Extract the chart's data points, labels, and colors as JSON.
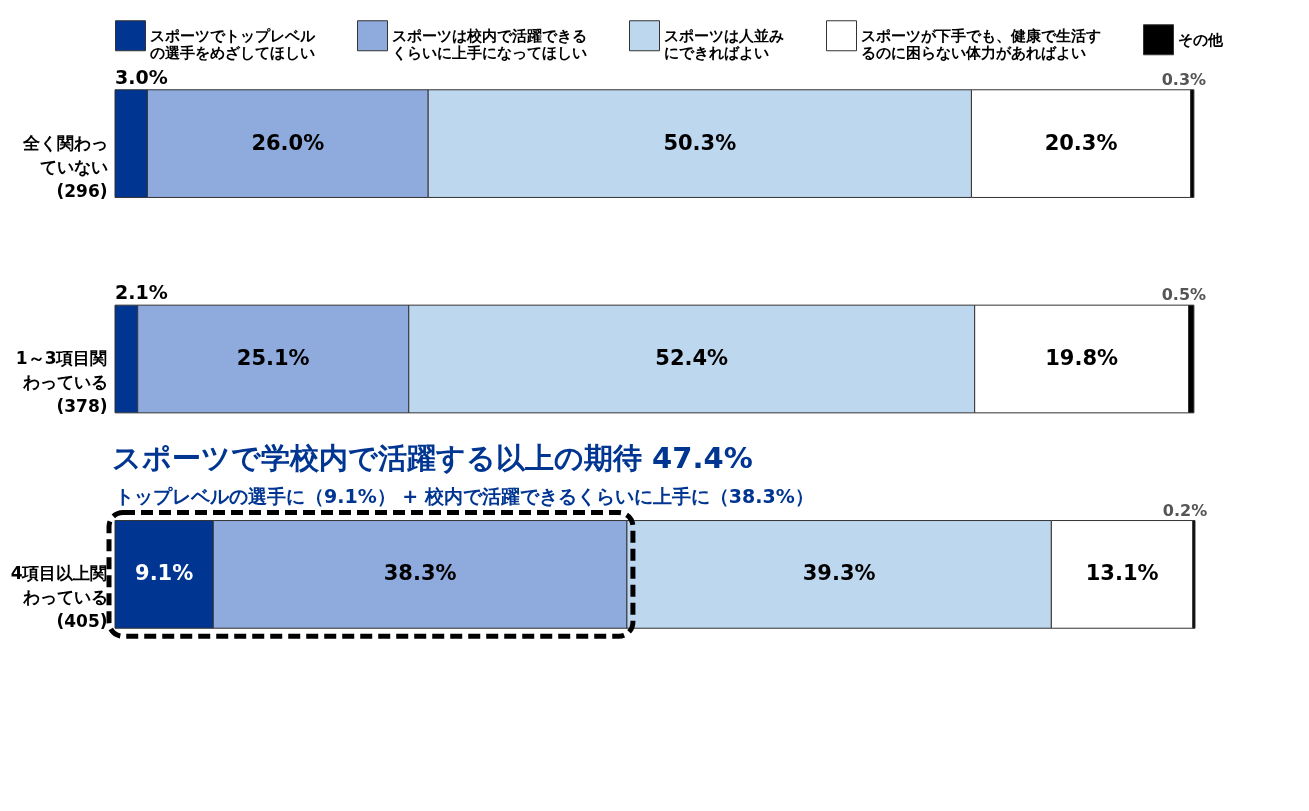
{
  "chart_data": {
    "type": "bar",
    "orientation": "horizontal",
    "stacked": true,
    "legend": "top",
    "categories": [
      "全く関わっていない(296)",
      "1～3項目関わっている(378)",
      "4項目以上関わっている(405)"
    ],
    "series": [
      {
        "name": "スポーツでトップレベルの選手をめざしてほしい",
        "color": "#003591",
        "values": [
          3.0,
          2.1,
          9.1
        ],
        "value_labels": [
          "3.0%",
          "2.1%",
          "9.1%"
        ]
      },
      {
        "name": "スポーツは校内で活躍できるくらいに上手になってほしい",
        "color": "#8faadc",
        "values": [
          26.0,
          25.1,
          38.3
        ],
        "value_labels": [
          "26.0%",
          "25.1%",
          "38.3%"
        ]
      },
      {
        "name": "スポーツは人並みにできればよい",
        "color": "#bdd7ee",
        "values": [
          50.3,
          52.4,
          39.3
        ],
        "value_labels": [
          "50.3%",
          "52.4%",
          "39.3%"
        ]
      },
      {
        "name": "スポーツが下手でも、健康で生活するのに困らない体力があればよい",
        "color": "#ffffff",
        "values": [
          20.3,
          19.8,
          13.1
        ],
        "value_labels": [
          "20.3%",
          "19.8%",
          "13.1%"
        ]
      },
      {
        "name": "その他",
        "color": "#000000",
        "values": [
          0.3,
          0.5,
          0.2
        ],
        "value_labels": [
          "0.3%",
          "0.5%",
          "0.2%"
        ]
      }
    ],
    "annotations": [
      "スポーツで学校内で活躍する以上の期待 47.4%",
      "トップレベルの選手に（9.1%） + 校内で活躍できるくらいに上手に（38.3%）"
    ]
  }
}
